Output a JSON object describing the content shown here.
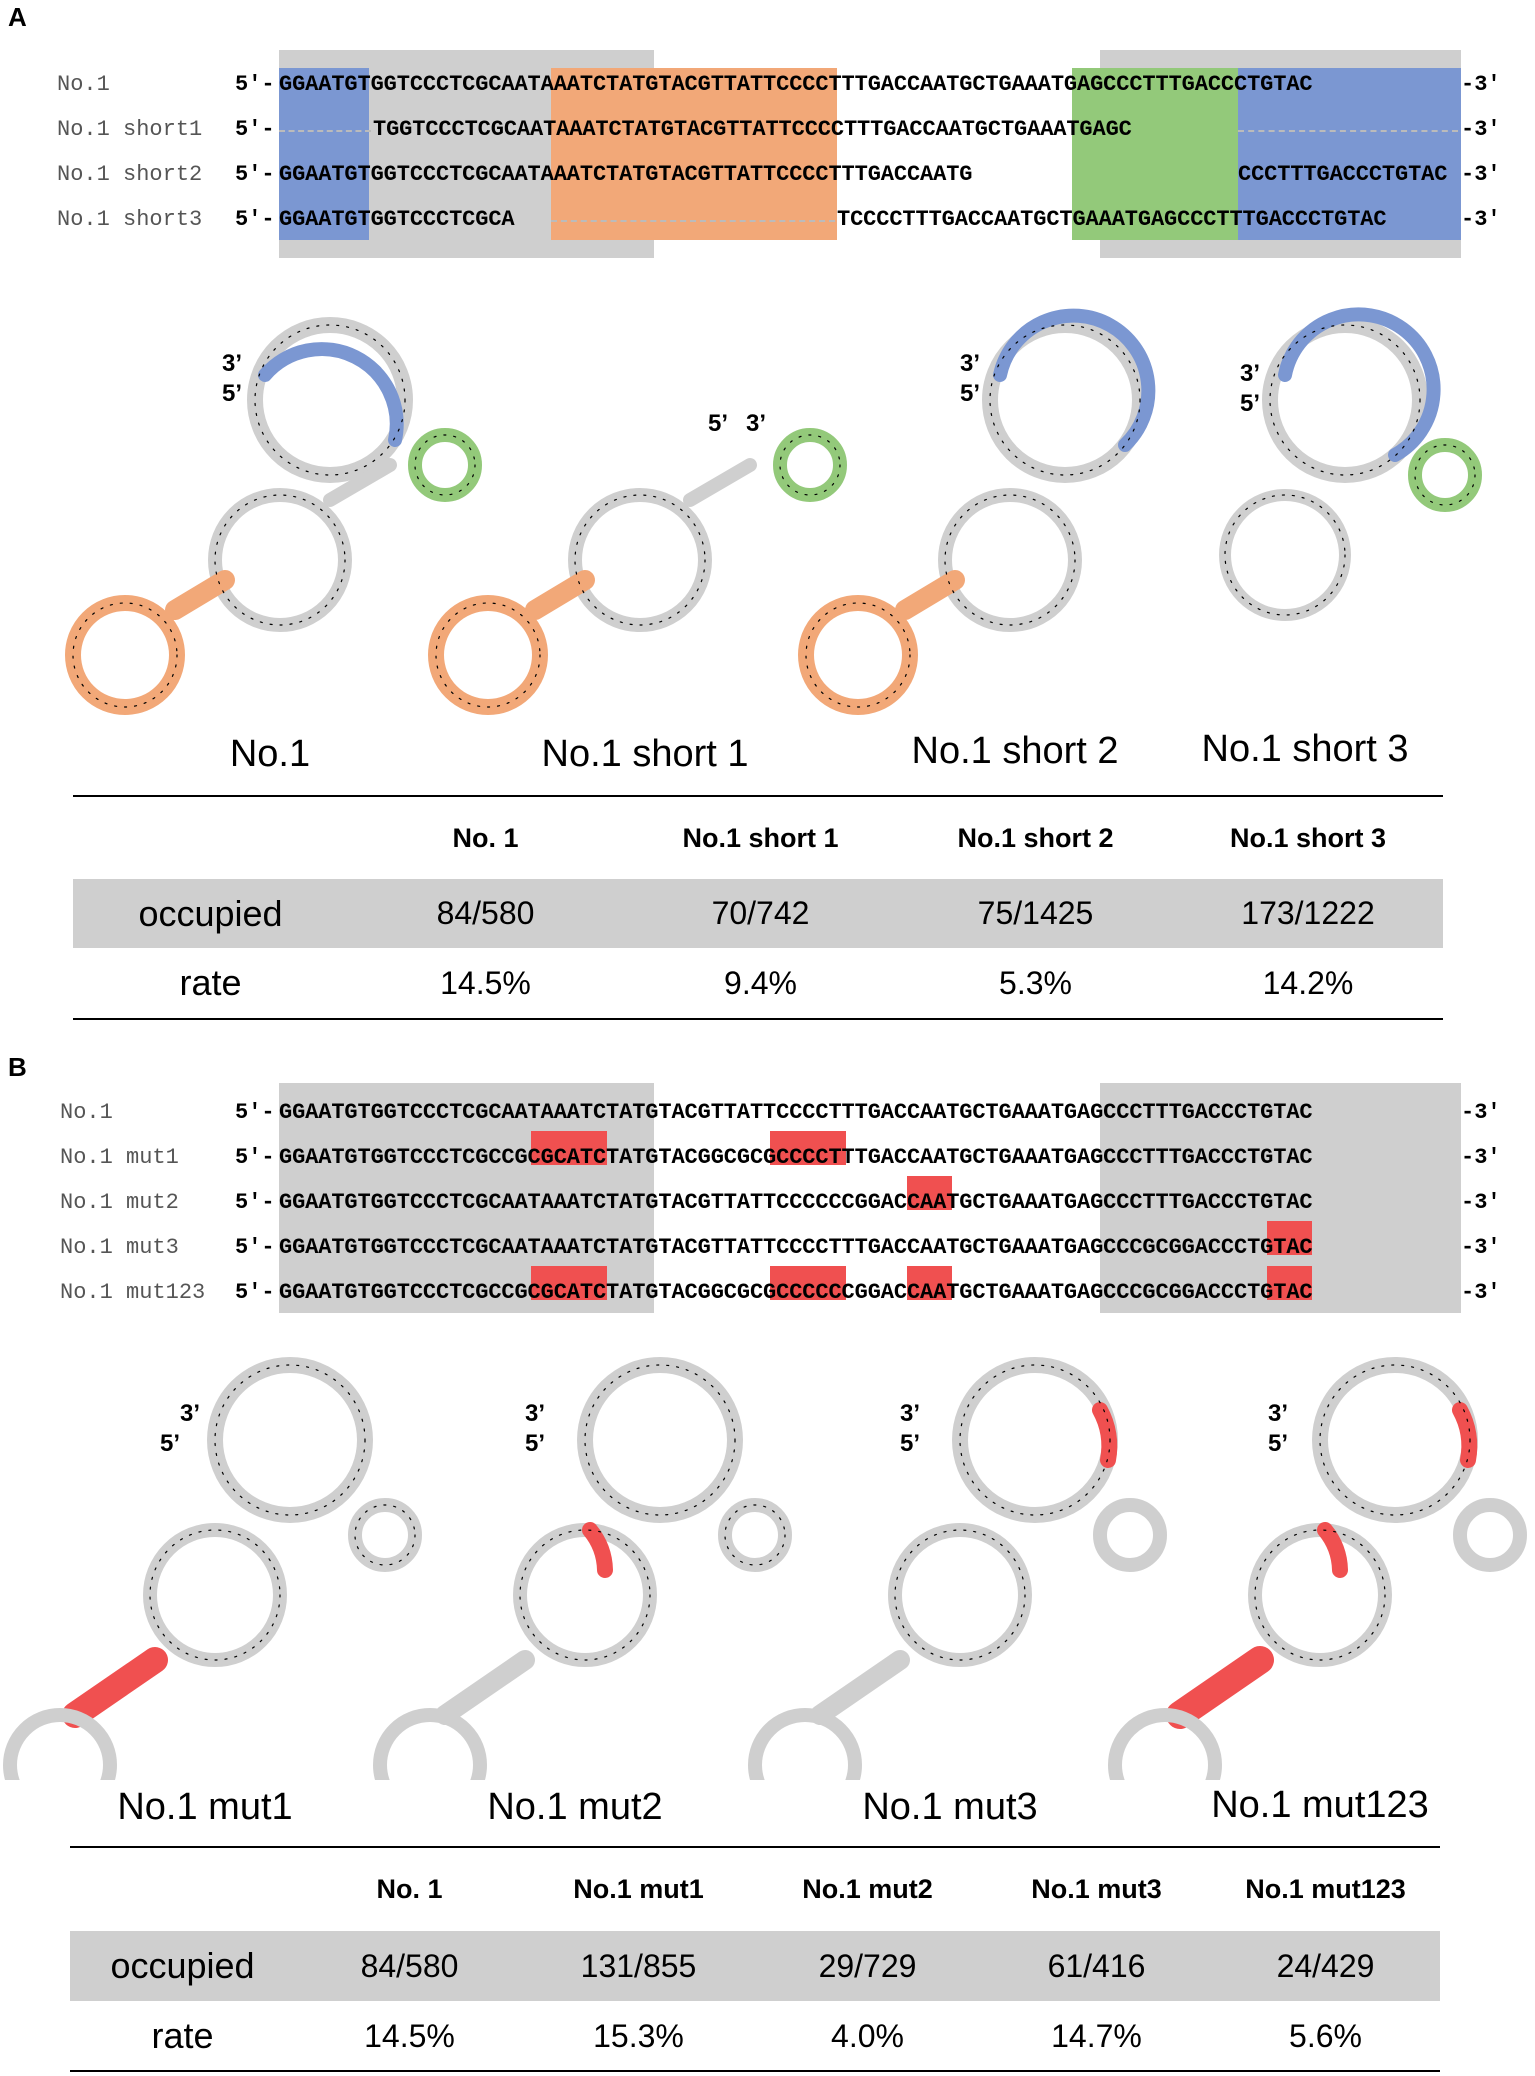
{
  "panelA": {
    "letter": "A",
    "names": [
      "No.1",
      "No.1 short1",
      "No.1 short2",
      "No.1 short3"
    ],
    "prefix": "5′-",
    "suffix": "-3′",
    "seqs": [
      "GGAATGTGGTCCCTCGCAATAAATCTATGTACGTTATTCCCCTTTGACCAATGCTGAAATGAGCCCTTTGACCCTGTAC",
      "TGGTCCCTCGCAATAAATCTATGTACGTTATTCCCCTTTGACCAATGCTGAAATGAGC",
      "GGAATGTGGTCCCTCGCAATAAATCTATGTACGTTATTCCCCTTTGACCAATG",
      "CCCTTTGACCCTGTAC",
      "GGAATGTGGTCCCTCGCA",
      "TCCCCTTTGACCAATGCTGAAATGAGCCCTTTGACCCTGTAC"
    ],
    "structure_titles": [
      "No.1",
      "No.1 short 1",
      "No.1 short 2",
      "No.1 short 3"
    ],
    "end_labels": {
      "three": "3’",
      "five": "5’"
    },
    "table": {
      "headers": [
        "",
        "No. 1",
        "No.1 short 1",
        "No.1 short 2",
        "No.1 short 3"
      ],
      "rows": [
        {
          "label": "occupied",
          "values": [
            "84/580",
            "70/742",
            "75/1425",
            "173/1222"
          ]
        },
        {
          "label": "rate",
          "values": [
            "14.5%",
            "9.4%",
            "5.3%",
            "14.2%"
          ]
        }
      ]
    }
  },
  "panelB": {
    "letter": "B",
    "names": [
      "No.1",
      "No.1 mut1",
      "No.1 mut2",
      "No.1 mut3",
      "No.1 mut123"
    ],
    "seqs": [
      "GGAATGTGGTCCCTCGCAATAAATCTATGTACGTTATTCCCCTTTGACCAATGCTGAAATGAGCCCTTTGACCCTGTAC",
      "GGAATGTGGTCCCTCGCCGCGCATCTATGTACGGCGCGCCCCTTTGACCAATGCTGAAATGAGCCCTTTGACCCTGTAC",
      "GGAATGTGGTCCCTCGCAATAAATCTATGTACGTTATTCCCCCCGGACCAATGCTGAAATGAGCCCTTTGACCCTGTAC",
      "GGAATGTGGTCCCTCGCAATAAATCTATGTACGTTATTCCCCTTTGACCAATGCTGAAATGAGCCCGCGGACCCTGTAC",
      "GGAATGTGGTCCCTCGCCGCGCATCTATGTACGGCGCGCCCCCCGGACCAATGCTGAAATGAGCCCGCGGACCCTGTAC"
    ],
    "structure_titles": [
      "No.1 mut1",
      "No.1 mut2",
      "No.1 mut3",
      "No.1 mut123"
    ],
    "table": {
      "headers": [
        "",
        "No. 1",
        "No.1 mut1",
        "No.1 mut2",
        "No.1 mut3",
        "No.1 mut123"
      ],
      "rows": [
        {
          "label": "occupied",
          "values": [
            "84/580",
            "131/855",
            "29/729",
            "61/416",
            "24/429"
          ]
        },
        {
          "label": "rate",
          "values": [
            "14.5%",
            "15.3%",
            "4.0%",
            "14.7%",
            "5.6%"
          ]
        }
      ]
    }
  },
  "colors": {
    "gray": "#cfcfcf",
    "blue": "#7b97d2",
    "orange": "#f2a878",
    "green": "#93c97a",
    "red": "#f05050"
  }
}
